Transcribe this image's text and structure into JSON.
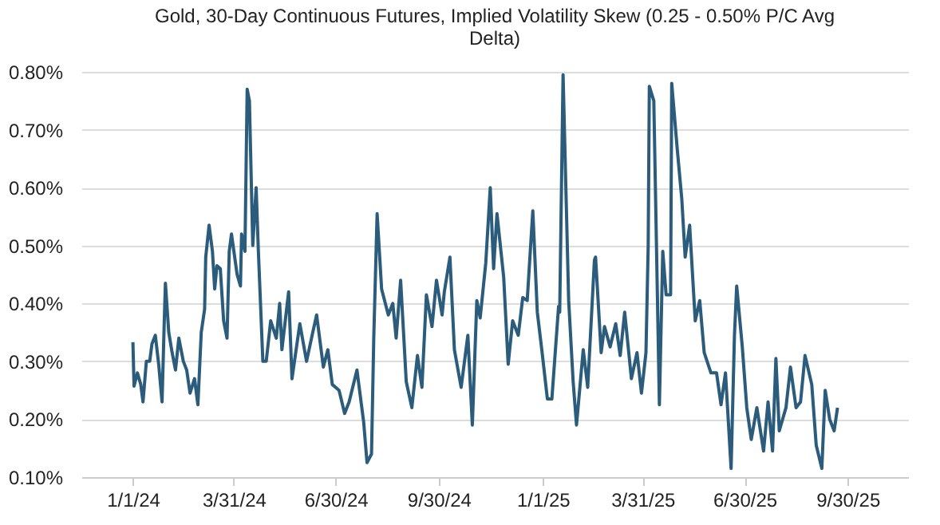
{
  "chart_data": {
    "type": "line",
    "title": "Gold, 30-Day Continuous Futures, Implied Volatility Skew (0.25 - 0.50% P/C Avg Delta)",
    "x": [
      "2024-01-01",
      "2024-01-02",
      "2024-01-05",
      "2024-01-08",
      "2024-01-10",
      "2024-01-13",
      "2024-01-16",
      "2024-01-18",
      "2024-01-21",
      "2024-01-24",
      "2024-01-27",
      "2024-01-29",
      "2024-01-30",
      "2024-02-02",
      "2024-02-05",
      "2024-02-08",
      "2024-02-11",
      "2024-02-15",
      "2024-02-18",
      "2024-02-21",
      "2024-02-25",
      "2024-02-28",
      "2024-03-02",
      "2024-03-05",
      "2024-03-06",
      "2024-03-09",
      "2024-03-12",
      "2024-03-14",
      "2024-03-16",
      "2024-03-19",
      "2024-03-22",
      "2024-03-25",
      "2024-03-27",
      "2024-03-29",
      "2024-04-03",
      "2024-04-06",
      "2024-04-07",
      "2024-04-10",
      "2024-04-12",
      "2024-04-14",
      "2024-04-17",
      "2024-04-20",
      "2024-04-22",
      "2024-04-26",
      "2024-04-29",
      "2024-05-03",
      "2024-05-08",
      "2024-05-11",
      "2024-05-13",
      "2024-05-19",
      "2024-05-22",
      "2024-05-29",
      "2024-06-04",
      "2024-06-09",
      "2024-06-13",
      "2024-06-19",
      "2024-06-23",
      "2024-06-27",
      "2024-07-03",
      "2024-07-08",
      "2024-07-12",
      "2024-07-19",
      "2024-07-25",
      "2024-07-28",
      "2024-08-01",
      "2024-08-03",
      "2024-08-06",
      "2024-08-10",
      "2024-08-16",
      "2024-08-20",
      "2024-08-23",
      "2024-08-27",
      "2024-09-01",
      "2024-09-06",
      "2024-09-11",
      "2024-09-15",
      "2024-09-19",
      "2024-09-24",
      "2024-09-28",
      "2024-10-03",
      "2024-10-05",
      "2024-10-10",
      "2024-10-14",
      "2024-10-20",
      "2024-10-26",
      "2024-10-30",
      "2024-11-03",
      "2024-11-06",
      "2024-11-11",
      "2024-11-15",
      "2024-11-18",
      "2024-11-21",
      "2024-11-27",
      "2024-12-01",
      "2024-12-05",
      "2024-12-10",
      "2024-12-14",
      "2024-12-18",
      "2024-12-23",
      "2024-12-27",
      "2024-12-31",
      "2025-01-05",
      "2025-01-09",
      "2025-01-15",
      "2025-01-16",
      "2025-01-19",
      "2025-01-24",
      "2025-01-28",
      "2025-01-31",
      "2025-02-06",
      "2025-02-10",
      "2025-02-16",
      "2025-02-17",
      "2025-02-22",
      "2025-02-25",
      "2025-03-02",
      "2025-03-07",
      "2025-03-11",
      "2025-03-15",
      "2025-03-21",
      "2025-03-26",
      "2025-03-30",
      "2025-04-03",
      "2025-04-05",
      "2025-04-06",
      "2025-04-10",
      "2025-04-15",
      "2025-04-18",
      "2025-04-21",
      "2025-04-25",
      "2025-04-26",
      "2025-05-01",
      "2025-05-05",
      "2025-05-08",
      "2025-05-12",
      "2025-05-17",
      "2025-05-21",
      "2025-05-25",
      "2025-05-31",
      "2025-06-05",
      "2025-06-09",
      "2025-06-13",
      "2025-06-18",
      "2025-06-21",
      "2025-06-23",
      "2025-06-28",
      "2025-07-02",
      "2025-07-06",
      "2025-07-11",
      "2025-07-17",
      "2025-07-21",
      "2025-07-25",
      "2025-07-28",
      "2025-07-31",
      "2025-08-06",
      "2025-08-10",
      "2025-08-15",
      "2025-08-19",
      "2025-08-23",
      "2025-08-29",
      "2025-09-02",
      "2025-09-07",
      "2025-09-10",
      "2025-09-14",
      "2025-09-18",
      "2025-09-21"
    ],
    "series": [
      {
        "color": "#2b5c7c",
        "values": [
          0.333,
          0.257,
          0.28,
          0.26,
          0.23,
          0.3,
          0.3,
          0.33,
          0.345,
          0.295,
          0.23,
          0.37,
          0.435,
          0.35,
          0.315,
          0.285,
          0.34,
          0.3,
          0.285,
          0.245,
          0.27,
          0.225,
          0.35,
          0.39,
          0.48,
          0.535,
          0.49,
          0.425,
          0.465,
          0.46,
          0.37,
          0.34,
          0.49,
          0.52,
          0.45,
          0.43,
          0.52,
          0.49,
          0.77,
          0.75,
          0.5,
          0.6,
          0.49,
          0.3,
          0.3,
          0.37,
          0.34,
          0.4,
          0.32,
          0.42,
          0.27,
          0.365,
          0.3,
          0.345,
          0.38,
          0.29,
          0.32,
          0.26,
          0.25,
          0.21,
          0.23,
          0.285,
          0.195,
          0.125,
          0.14,
          0.34,
          0.555,
          0.425,
          0.38,
          0.4,
          0.34,
          0.44,
          0.265,
          0.22,
          0.31,
          0.255,
          0.415,
          0.36,
          0.44,
          0.38,
          0.42,
          0.48,
          0.32,
          0.255,
          0.345,
          0.19,
          0.405,
          0.375,
          0.47,
          0.6,
          0.46,
          0.555,
          0.445,
          0.295,
          0.37,
          0.345,
          0.41,
          0.405,
          0.56,
          0.385,
          0.32,
          0.235,
          0.235,
          0.395,
          0.385,
          0.795,
          0.405,
          0.265,
          0.19,
          0.32,
          0.255,
          0.475,
          0.48,
          0.315,
          0.36,
          0.325,
          0.365,
          0.31,
          0.385,
          0.27,
          0.315,
          0.245,
          0.315,
          0.5,
          0.775,
          0.75,
          0.225,
          0.49,
          0.415,
          0.415,
          0.78,
          0.665,
          0.58,
          0.48,
          0.535,
          0.37,
          0.405,
          0.315,
          0.28,
          0.28,
          0.225,
          0.28,
          0.115,
          0.345,
          0.43,
          0.325,
          0.22,
          0.165,
          0.22,
          0.145,
          0.23,
          0.145,
          0.305,
          0.18,
          0.22,
          0.29,
          0.22,
          0.23,
          0.31,
          0.26,
          0.155,
          0.115,
          0.25,
          0.2,
          0.18,
          0.22
        ]
      }
    ],
    "xlim": [
      "2023-11-16",
      "2025-11-23"
    ],
    "xticks": [
      {
        "value": "2024-01-01",
        "label": "1/1/24"
      },
      {
        "value": "2024-03-31",
        "label": "3/31/24"
      },
      {
        "value": "2024-06-30",
        "label": "6/30/24"
      },
      {
        "value": "2024-09-30",
        "label": "9/30/24"
      },
      {
        "value": "2025-01-01",
        "label": "1/1/25"
      },
      {
        "value": "2025-03-31",
        "label": "3/31/25"
      },
      {
        "value": "2025-06-30",
        "label": "6/30/25"
      },
      {
        "value": "2025-09-30",
        "label": "9/30/25"
      }
    ],
    "ylim": [
      0.1,
      0.8
    ],
    "yticks": [
      {
        "value": 0.1,
        "label": "0.10%"
      },
      {
        "value": 0.2,
        "label": "0.20%"
      },
      {
        "value": 0.3,
        "label": "0.30%"
      },
      {
        "value": 0.4,
        "label": "0.40%"
      },
      {
        "value": 0.5,
        "label": "0.50%"
      },
      {
        "value": 0.6,
        "label": "0.60%"
      },
      {
        "value": 0.7,
        "label": "0.70%"
      },
      {
        "value": 0.8,
        "label": "0.80%"
      }
    ],
    "grid": "y",
    "legend": false
  }
}
